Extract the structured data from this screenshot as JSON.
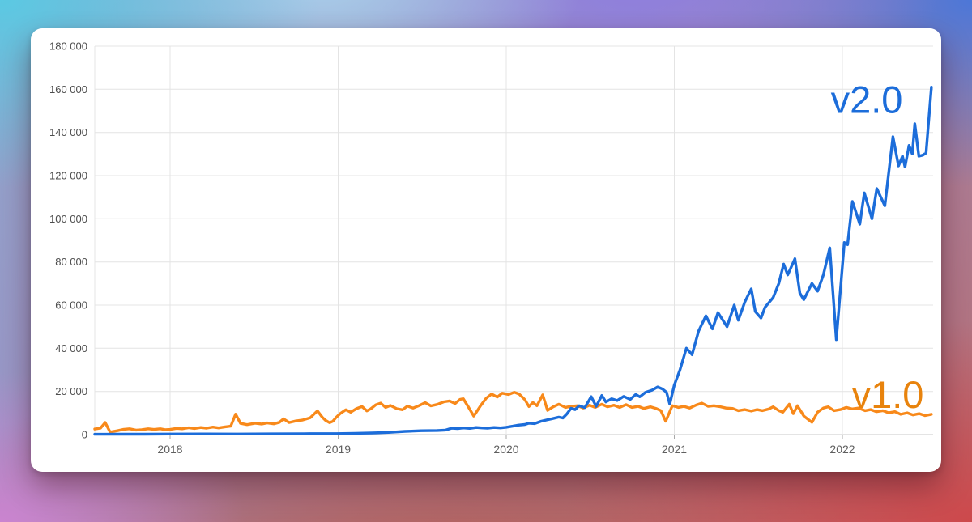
{
  "chart_data": {
    "type": "line",
    "title": "",
    "grid": true,
    "legend_position": "inline-end-labels",
    "x_axis": {
      "range": [
        2017.552,
        2022.54
      ],
      "ticks": [
        2018,
        2019,
        2020,
        2021,
        2022
      ],
      "tick_labels": [
        "2018",
        "2019",
        "2020",
        "2021",
        "2022"
      ]
    },
    "y_axis": {
      "range": [
        0,
        180000
      ],
      "ticks": [
        0,
        20000,
        40000,
        60000,
        80000,
        100000,
        120000,
        140000,
        160000,
        180000
      ],
      "tick_labels": [
        "0",
        "20 000",
        "40 000",
        "60 000",
        "80 000",
        "100 000",
        "120 000",
        "140 000",
        "160 000",
        "180 000"
      ]
    },
    "colors": {
      "grid_line": "#e4e4e4",
      "zero_line": "#c9c9c9",
      "tick_mark": "#a9a9a9",
      "v1_line": "#f8891a",
      "v1_label": "#e8830d",
      "v2_line": "#1c6dda",
      "v2_label": "#1c6dda"
    },
    "series": [
      {
        "name": "v1.0",
        "color": "#f8891a",
        "label": {
          "text": "v1.0",
          "x": 2022.27,
          "y": 12400,
          "color": "#e8830d"
        },
        "points": [
          [
            2017.552,
            2600
          ],
          [
            2017.586,
            3000
          ],
          [
            2017.614,
            5600
          ],
          [
            2017.643,
            1200
          ],
          [
            2017.687,
            1800
          ],
          [
            2017.72,
            2400
          ],
          [
            2017.759,
            2700
          ],
          [
            2017.798,
            2100
          ],
          [
            2017.831,
            2300
          ],
          [
            2017.87,
            2700
          ],
          [
            2017.904,
            2400
          ],
          [
            2017.942,
            2700
          ],
          [
            2017.971,
            2300
          ],
          [
            2018.0,
            2400
          ],
          [
            2018.039,
            2900
          ],
          [
            2018.072,
            2700
          ],
          [
            2018.111,
            3200
          ],
          [
            2018.145,
            2800
          ],
          [
            2018.183,
            3300
          ],
          [
            2018.217,
            3000
          ],
          [
            2018.255,
            3500
          ],
          [
            2018.289,
            3100
          ],
          [
            2018.328,
            3600
          ],
          [
            2018.361,
            3900
          ],
          [
            2018.39,
            9500
          ],
          [
            2018.419,
            5200
          ],
          [
            2018.458,
            4600
          ],
          [
            2018.506,
            5300
          ],
          [
            2018.545,
            4900
          ],
          [
            2018.578,
            5400
          ],
          [
            2018.617,
            5000
          ],
          [
            2018.651,
            5700
          ],
          [
            2018.675,
            7300
          ],
          [
            2018.708,
            5600
          ],
          [
            2018.747,
            6300
          ],
          [
            2018.786,
            6700
          ],
          [
            2018.834,
            7800
          ],
          [
            2018.877,
            11000
          ],
          [
            2018.906,
            8000
          ],
          [
            2018.925,
            6600
          ],
          [
            2018.949,
            5500
          ],
          [
            2018.969,
            6200
          ],
          [
            2018.988,
            8000
          ],
          [
            2019.012,
            9700
          ],
          [
            2019.046,
            11500
          ],
          [
            2019.075,
            10400
          ],
          [
            2019.108,
            12000
          ],
          [
            2019.142,
            13000
          ],
          [
            2019.171,
            11000
          ],
          [
            2019.195,
            12000
          ],
          [
            2019.224,
            13800
          ],
          [
            2019.253,
            14600
          ],
          [
            2019.282,
            12600
          ],
          [
            2019.311,
            13500
          ],
          [
            2019.349,
            12000
          ],
          [
            2019.383,
            11500
          ],
          [
            2019.412,
            13200
          ],
          [
            2019.446,
            12300
          ],
          [
            2019.48,
            13400
          ],
          [
            2019.518,
            14800
          ],
          [
            2019.552,
            13300
          ],
          [
            2019.59,
            14000
          ],
          [
            2019.629,
            15200
          ],
          [
            2019.663,
            15600
          ],
          [
            2019.696,
            14400
          ],
          [
            2019.725,
            16300
          ],
          [
            2019.745,
            16600
          ],
          [
            2019.773,
            13000
          ],
          [
            2019.807,
            8600
          ],
          [
            2019.846,
            13200
          ],
          [
            2019.88,
            16800
          ],
          [
            2019.913,
            18800
          ],
          [
            2019.947,
            17400
          ],
          [
            2019.976,
            19200
          ],
          [
            2020.014,
            18600
          ],
          [
            2020.048,
            19600
          ],
          [
            2020.077,
            18800
          ],
          [
            2020.111,
            16200
          ],
          [
            2020.135,
            13000
          ],
          [
            2020.159,
            14900
          ],
          [
            2020.183,
            13400
          ],
          [
            2020.217,
            18400
          ],
          [
            2020.246,
            11200
          ],
          [
            2020.28,
            12900
          ],
          [
            2020.313,
            14100
          ],
          [
            2020.352,
            12600
          ],
          [
            2020.386,
            13100
          ],
          [
            2020.424,
            13400
          ],
          [
            2020.458,
            12300
          ],
          [
            2020.496,
            13600
          ],
          [
            2020.53,
            12600
          ],
          [
            2020.569,
            14100
          ],
          [
            2020.602,
            12900
          ],
          [
            2020.641,
            13600
          ],
          [
            2020.675,
            12600
          ],
          [
            2020.713,
            13900
          ],
          [
            2020.747,
            12600
          ],
          [
            2020.786,
            13100
          ],
          [
            2020.819,
            12100
          ],
          [
            2020.858,
            12900
          ],
          [
            2020.892,
            12100
          ],
          [
            2020.92,
            11100
          ],
          [
            2020.949,
            6200
          ],
          [
            2020.988,
            13400
          ],
          [
            2021.024,
            12600
          ],
          [
            2021.058,
            13100
          ],
          [
            2021.092,
            12300
          ],
          [
            2021.13,
            13700
          ],
          [
            2021.164,
            14600
          ],
          [
            2021.202,
            13100
          ],
          [
            2021.236,
            13400
          ],
          [
            2021.275,
            12900
          ],
          [
            2021.308,
            12300
          ],
          [
            2021.347,
            12100
          ],
          [
            2021.381,
            11100
          ],
          [
            2021.42,
            11600
          ],
          [
            2021.458,
            10900
          ],
          [
            2021.492,
            11600
          ],
          [
            2021.525,
            11100
          ],
          [
            2021.563,
            11900
          ],
          [
            2021.588,
            12900
          ],
          [
            2021.622,
            11100
          ],
          [
            2021.646,
            10400
          ],
          [
            2021.684,
            14100
          ],
          [
            2021.708,
            9700
          ],
          [
            2021.733,
            13400
          ],
          [
            2021.771,
            8600
          ],
          [
            2021.819,
            5700
          ],
          [
            2021.853,
            10400
          ],
          [
            2021.887,
            12300
          ],
          [
            2021.916,
            12900
          ],
          [
            2021.95,
            11100
          ],
          [
            2021.988,
            11600
          ],
          [
            2022.024,
            12600
          ],
          [
            2022.058,
            11900
          ],
          [
            2022.096,
            12300
          ],
          [
            2022.135,
            11100
          ],
          [
            2022.169,
            11600
          ],
          [
            2022.202,
            10600
          ],
          [
            2022.241,
            11100
          ],
          [
            2022.275,
            10100
          ],
          [
            2022.313,
            10600
          ],
          [
            2022.347,
            9400
          ],
          [
            2022.386,
            10100
          ],
          [
            2022.42,
            9100
          ],
          [
            2022.458,
            9700
          ],
          [
            2022.492,
            8800
          ],
          [
            2022.53,
            9400
          ]
        ]
      },
      {
        "name": "v2.0",
        "color": "#1c6dda",
        "label": {
          "text": "v2.0",
          "x": 2022.145,
          "y": 149000,
          "color": "#1c6dda"
        },
        "points": [
          [
            2017.552,
            150
          ],
          [
            2017.7,
            200
          ],
          [
            2017.85,
            180
          ],
          [
            2018.0,
            250
          ],
          [
            2018.2,
            300
          ],
          [
            2018.4,
            280
          ],
          [
            2018.6,
            350
          ],
          [
            2018.8,
            400
          ],
          [
            2018.99,
            450
          ],
          [
            2019.1,
            600
          ],
          [
            2019.2,
            750
          ],
          [
            2019.3,
            1000
          ],
          [
            2019.398,
            1500
          ],
          [
            2019.494,
            1800
          ],
          [
            2019.59,
            1900
          ],
          [
            2019.639,
            2100
          ],
          [
            2019.677,
            3000
          ],
          [
            2019.711,
            2800
          ],
          [
            2019.745,
            3100
          ],
          [
            2019.783,
            2900
          ],
          [
            2019.822,
            3300
          ],
          [
            2019.855,
            3100
          ],
          [
            2019.889,
            3000
          ],
          [
            2019.928,
            3300
          ],
          [
            2019.966,
            3100
          ],
          [
            2020.0,
            3400
          ],
          [
            2020.039,
            3900
          ],
          [
            2020.072,
            4400
          ],
          [
            2020.111,
            4700
          ],
          [
            2020.135,
            5300
          ],
          [
            2020.169,
            5100
          ],
          [
            2020.208,
            6200
          ],
          [
            2020.241,
            6800
          ],
          [
            2020.275,
            7400
          ],
          [
            2020.313,
            8100
          ],
          [
            2020.337,
            7700
          ],
          [
            2020.361,
            9600
          ],
          [
            2020.386,
            12200
          ],
          [
            2020.41,
            11600
          ],
          [
            2020.434,
            13400
          ],
          [
            2020.467,
            12500
          ],
          [
            2020.506,
            17600
          ],
          [
            2020.535,
            13100
          ],
          [
            2020.569,
            18100
          ],
          [
            2020.593,
            15100
          ],
          [
            2020.627,
            16600
          ],
          [
            2020.66,
            15800
          ],
          [
            2020.699,
            17700
          ],
          [
            2020.738,
            16300
          ],
          [
            2020.771,
            18600
          ],
          [
            2020.795,
            17500
          ],
          [
            2020.829,
            19600
          ],
          [
            2020.867,
            20600
          ],
          [
            2020.901,
            22100
          ],
          [
            2020.93,
            21100
          ],
          [
            2020.954,
            19600
          ],
          [
            2020.973,
            14100
          ],
          [
            2021.0,
            23000
          ],
          [
            2021.034,
            30000
          ],
          [
            2021.072,
            40000
          ],
          [
            2021.106,
            37000
          ],
          [
            2021.145,
            48000
          ],
          [
            2021.188,
            55000
          ],
          [
            2021.227,
            49000
          ],
          [
            2021.26,
            56500
          ],
          [
            2021.314,
            50000
          ],
          [
            2021.357,
            60000
          ],
          [
            2021.381,
            53000
          ],
          [
            2021.42,
            61500
          ],
          [
            2021.458,
            67500
          ],
          [
            2021.482,
            57000
          ],
          [
            2021.516,
            54000
          ],
          [
            2021.54,
            59000
          ],
          [
            2021.588,
            63500
          ],
          [
            2021.622,
            70000
          ],
          [
            2021.651,
            79000
          ],
          [
            2021.675,
            74000
          ],
          [
            2021.718,
            81500
          ],
          [
            2021.747,
            65500
          ],
          [
            2021.771,
            62500
          ],
          [
            2021.819,
            70000
          ],
          [
            2021.853,
            66500
          ],
          [
            2021.887,
            74000
          ],
          [
            2021.925,
            86500
          ],
          [
            2021.964,
            44000
          ],
          [
            2022.012,
            89000
          ],
          [
            2022.031,
            88000
          ],
          [
            2022.06,
            108000
          ],
          [
            2022.104,
            97500
          ],
          [
            2022.131,
            112000
          ],
          [
            2022.176,
            100000
          ],
          [
            2022.205,
            114000
          ],
          [
            2022.253,
            106000
          ],
          [
            2022.301,
            138000
          ],
          [
            2022.334,
            124500
          ],
          [
            2022.358,
            129000
          ],
          [
            2022.373,
            124000
          ],
          [
            2022.397,
            134000
          ],
          [
            2022.416,
            130000
          ],
          [
            2022.431,
            144000
          ],
          [
            2022.455,
            129000
          ],
          [
            2022.479,
            129500
          ],
          [
            2022.498,
            130500
          ],
          [
            2022.53,
            161000
          ]
        ]
      }
    ]
  }
}
